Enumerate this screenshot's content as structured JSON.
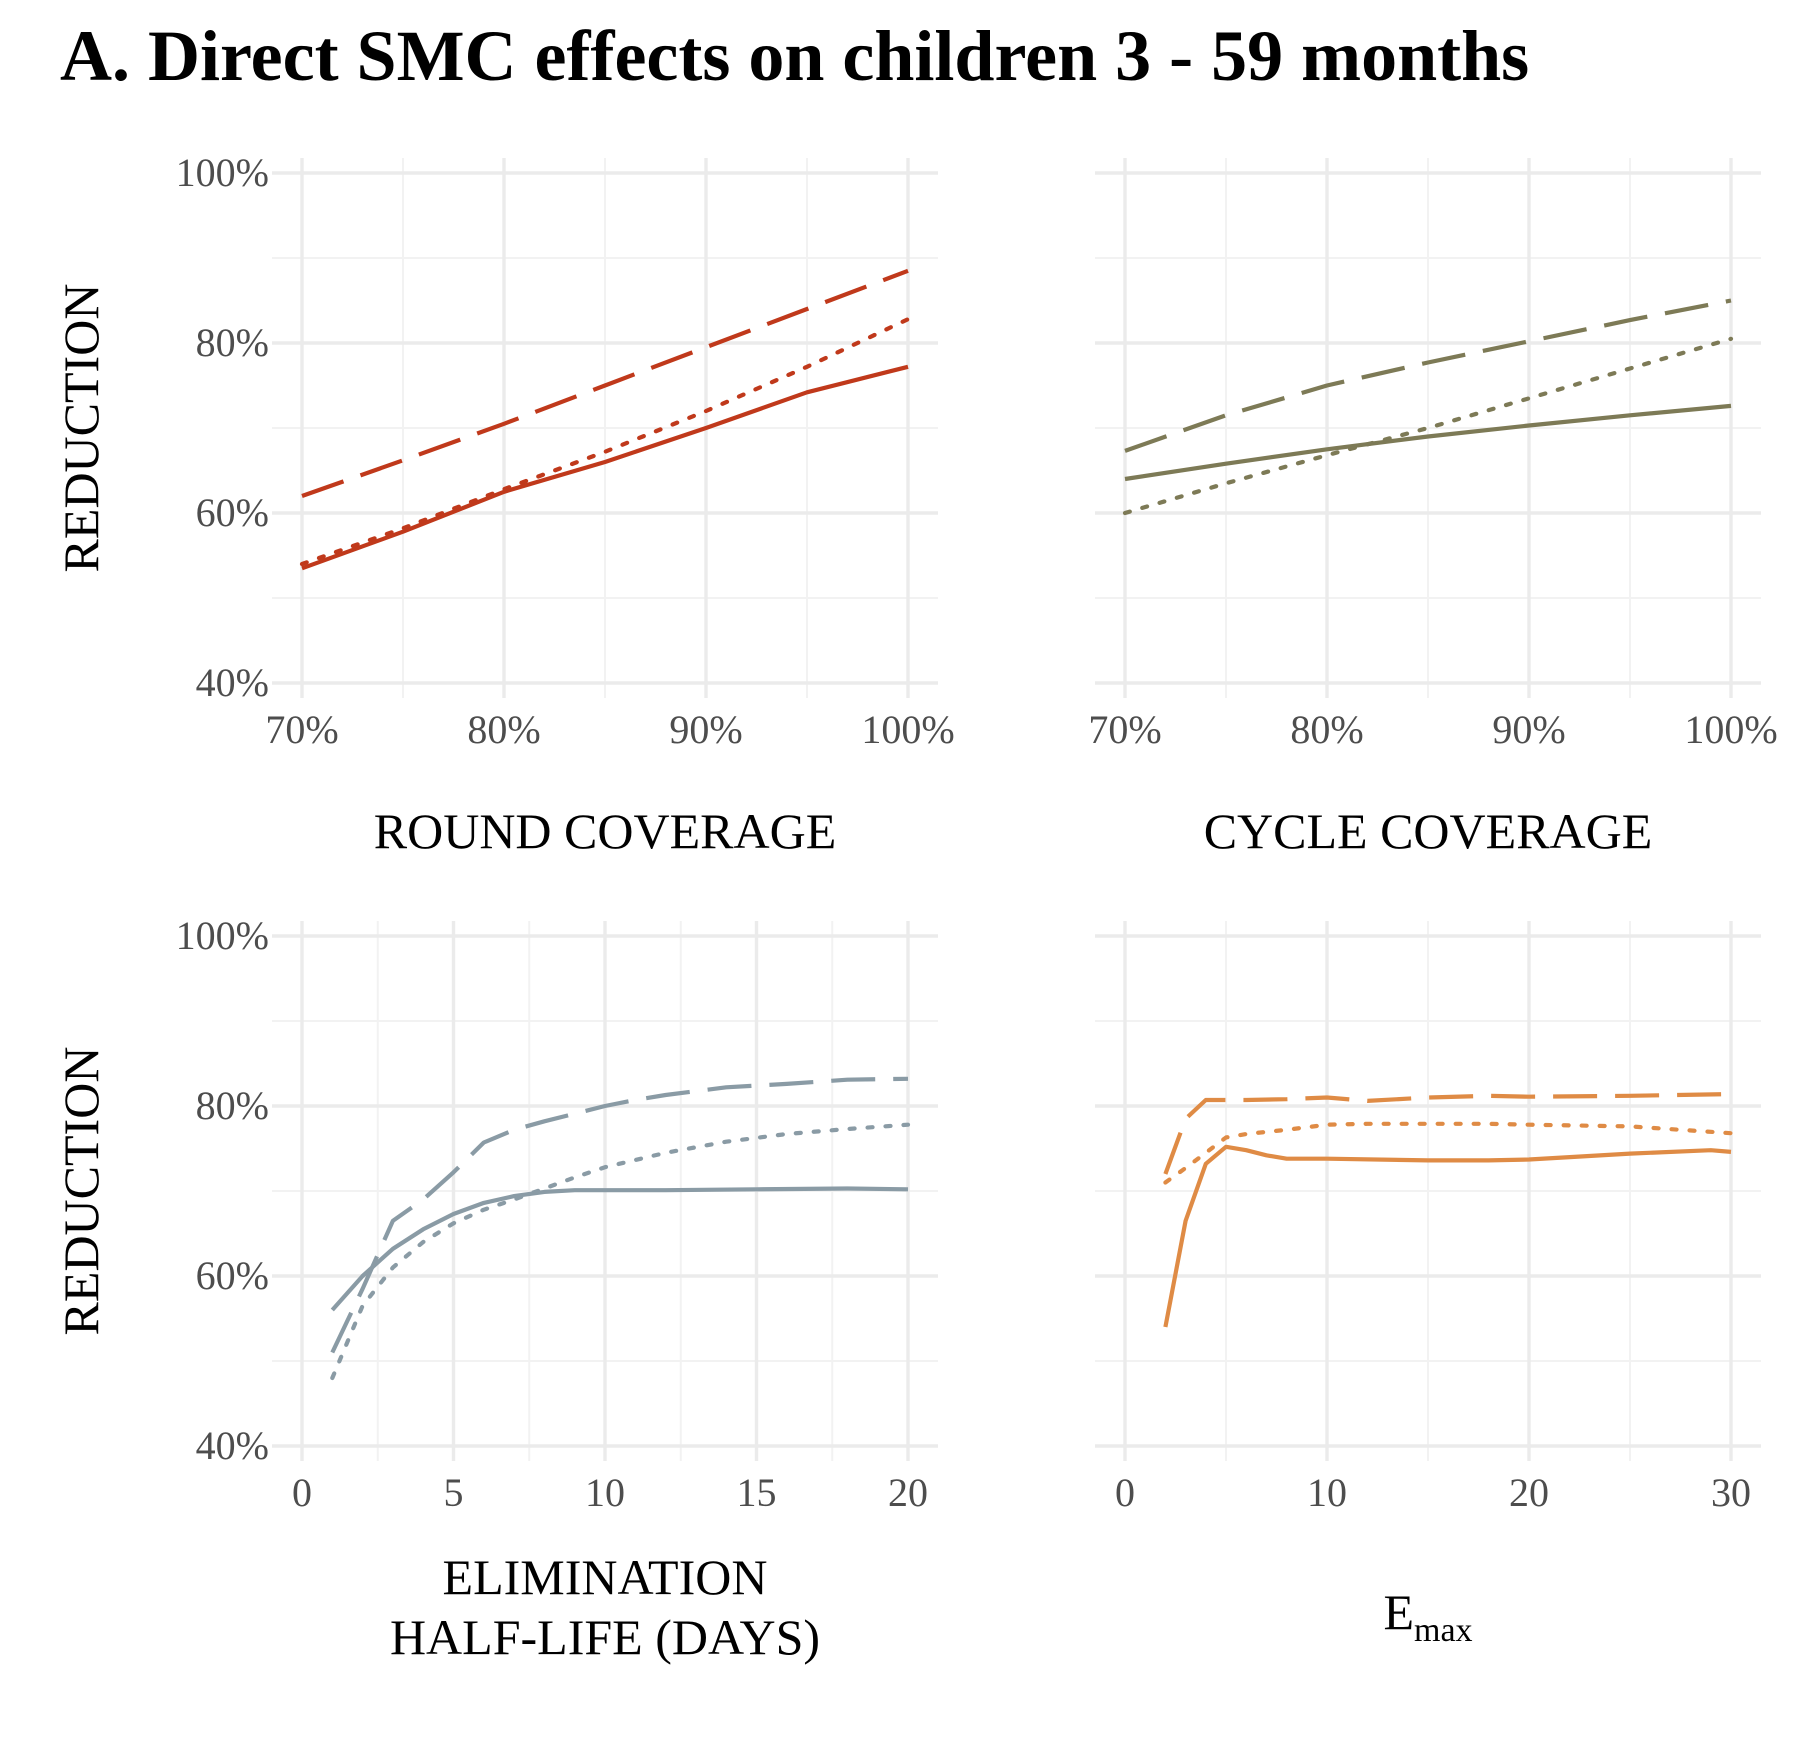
{
  "figure": {
    "title": "A. Direct SMC effects on children 3 - 59 months"
  },
  "chart_data": [
    {
      "type": "line",
      "panel": "top-left",
      "xlabel": "ROUND  COVERAGE",
      "ylabel": "REDUCTION",
      "xlim": [
        0.7,
        1.0
      ],
      "ylim": [
        0.4,
        1.0
      ],
      "x_ticks": [
        0.7,
        0.8,
        0.9,
        1.0
      ],
      "x_tick_labels": [
        "70%",
        "80%",
        "90%",
        "100%"
      ],
      "y_ticks": [
        0.4,
        0.6,
        0.8,
        1.0
      ],
      "y_tick_labels": [
        "40%",
        "60%",
        "80%",
        "100%"
      ],
      "color": "#c0391b",
      "series": [
        {
          "style": "solid",
          "x": [
            0.7,
            0.75,
            0.8,
            0.85,
            0.9,
            0.95,
            1.0
          ],
          "y": [
            0.535,
            0.578,
            0.625,
            0.66,
            0.7,
            0.742,
            0.772
          ]
        },
        {
          "style": "dashed",
          "x": [
            0.7,
            0.75,
            0.8,
            0.85,
            0.9,
            0.95,
            1.0
          ],
          "y": [
            0.62,
            0.662,
            0.705,
            0.75,
            0.795,
            0.84,
            0.885
          ]
        },
        {
          "style": "dotted",
          "x": [
            0.7,
            0.75,
            0.8,
            0.85,
            0.9,
            0.95,
            1.0
          ],
          "y": [
            0.54,
            0.582,
            0.628,
            0.672,
            0.72,
            0.772,
            0.828
          ]
        }
      ]
    },
    {
      "type": "line",
      "panel": "top-right",
      "xlabel": "CYCLE  COVERAGE",
      "ylabel": "",
      "xlim": [
        0.7,
        1.0
      ],
      "ylim": [
        0.4,
        1.0
      ],
      "x_ticks": [
        0.7,
        0.8,
        0.9,
        1.0
      ],
      "x_tick_labels": [
        "70%",
        "80%",
        "90%",
        "100%"
      ],
      "y_ticks": [
        0.4,
        0.6,
        0.8,
        1.0
      ],
      "y_tick_labels": [],
      "color": "#7d7a56",
      "series": [
        {
          "style": "solid",
          "x": [
            0.7,
            0.75,
            0.8,
            0.85,
            0.9,
            0.95,
            1.0
          ],
          "y": [
            0.64,
            0.658,
            0.675,
            0.69,
            0.703,
            0.715,
            0.726
          ]
        },
        {
          "style": "dashed",
          "x": [
            0.7,
            0.75,
            0.8,
            0.85,
            0.9,
            0.95,
            1.0
          ],
          "y": [
            0.673,
            0.715,
            0.75,
            0.777,
            0.802,
            0.827,
            0.85
          ]
        },
        {
          "style": "dotted",
          "x": [
            0.7,
            0.75,
            0.8,
            0.85,
            0.9,
            0.95,
            1.0
          ],
          "y": [
            0.6,
            0.635,
            0.668,
            0.7,
            0.735,
            0.77,
            0.805
          ]
        }
      ]
    },
    {
      "type": "line",
      "panel": "bottom-left",
      "xlabel": "ELIMINATION HALF-LIFE  (DAYS)",
      "xlabel_lines": [
        "ELIMINATION",
        "HALF-LIFE  (DAYS)"
      ],
      "ylabel": "REDUCTION",
      "xlim": [
        0,
        20
      ],
      "ylim": [
        0.4,
        1.0
      ],
      "x_ticks": [
        0,
        5,
        10,
        15,
        20
      ],
      "x_tick_labels": [
        "0",
        "5",
        "10",
        "15",
        "20"
      ],
      "y_ticks": [
        0.4,
        0.6,
        0.8,
        1.0
      ],
      "y_tick_labels": [
        "40%",
        "60%",
        "80%",
        "100%"
      ],
      "color": "#8a9ba5",
      "series": [
        {
          "style": "solid",
          "x": [
            1,
            2,
            3,
            4,
            5,
            6,
            7,
            8,
            9,
            10,
            12,
            15,
            18,
            20
          ],
          "y": [
            0.56,
            0.6,
            0.632,
            0.655,
            0.673,
            0.686,
            0.694,
            0.699,
            0.701,
            0.701,
            0.701,
            0.702,
            0.703,
            0.702
          ]
        },
        {
          "style": "dashed",
          "x": [
            1,
            2,
            3,
            4,
            5,
            6,
            7,
            8,
            9,
            10,
            11,
            12,
            14,
            16,
            18,
            20
          ],
          "y": [
            0.51,
            0.585,
            0.665,
            0.69,
            0.722,
            0.757,
            0.772,
            0.782,
            0.791,
            0.8,
            0.807,
            0.813,
            0.822,
            0.826,
            0.831,
            0.832
          ]
        },
        {
          "style": "dotted",
          "x": [
            1,
            2,
            3,
            4,
            5,
            6,
            7,
            8,
            9,
            10,
            12,
            14,
            16,
            18,
            20
          ],
          "y": [
            0.48,
            0.565,
            0.61,
            0.64,
            0.662,
            0.678,
            0.69,
            0.703,
            0.716,
            0.728,
            0.745,
            0.758,
            0.767,
            0.773,
            0.778
          ]
        }
      ]
    },
    {
      "type": "line",
      "panel": "bottom-right",
      "xlabel": "E",
      "xlabel_sub": "max",
      "ylabel": "",
      "xlim": [
        0,
        30
      ],
      "ylim": [
        0.4,
        1.0
      ],
      "x_ticks": [
        0,
        10,
        20,
        30
      ],
      "x_tick_labels": [
        "0",
        "10",
        "20",
        "30"
      ],
      "y_ticks": [
        0.4,
        0.6,
        0.8,
        1.0
      ],
      "y_tick_labels": [],
      "color": "#df8b45",
      "series": [
        {
          "style": "solid",
          "x": [
            2,
            3,
            4,
            5,
            6,
            7,
            8,
            10,
            15,
            18,
            20,
            25,
            29,
            30
          ],
          "y": [
            0.54,
            0.665,
            0.732,
            0.752,
            0.748,
            0.742,
            0.738,
            0.738,
            0.736,
            0.736,
            0.737,
            0.744,
            0.748,
            0.746
          ]
        },
        {
          "style": "dashed",
          "x": [
            2,
            3,
            4,
            5,
            6,
            8,
            10,
            12,
            15,
            18,
            20,
            25,
            30
          ],
          "y": [
            0.72,
            0.785,
            0.807,
            0.807,
            0.807,
            0.808,
            0.81,
            0.806,
            0.81,
            0.812,
            0.811,
            0.812,
            0.814
          ]
        },
        {
          "style": "dotted",
          "x": [
            2,
            3,
            4,
            5,
            6,
            8,
            10,
            12,
            15,
            18,
            20,
            25,
            30
          ],
          "y": [
            0.71,
            0.727,
            0.745,
            0.763,
            0.767,
            0.772,
            0.778,
            0.779,
            0.779,
            0.779,
            0.778,
            0.776,
            0.768
          ]
        }
      ]
    }
  ]
}
